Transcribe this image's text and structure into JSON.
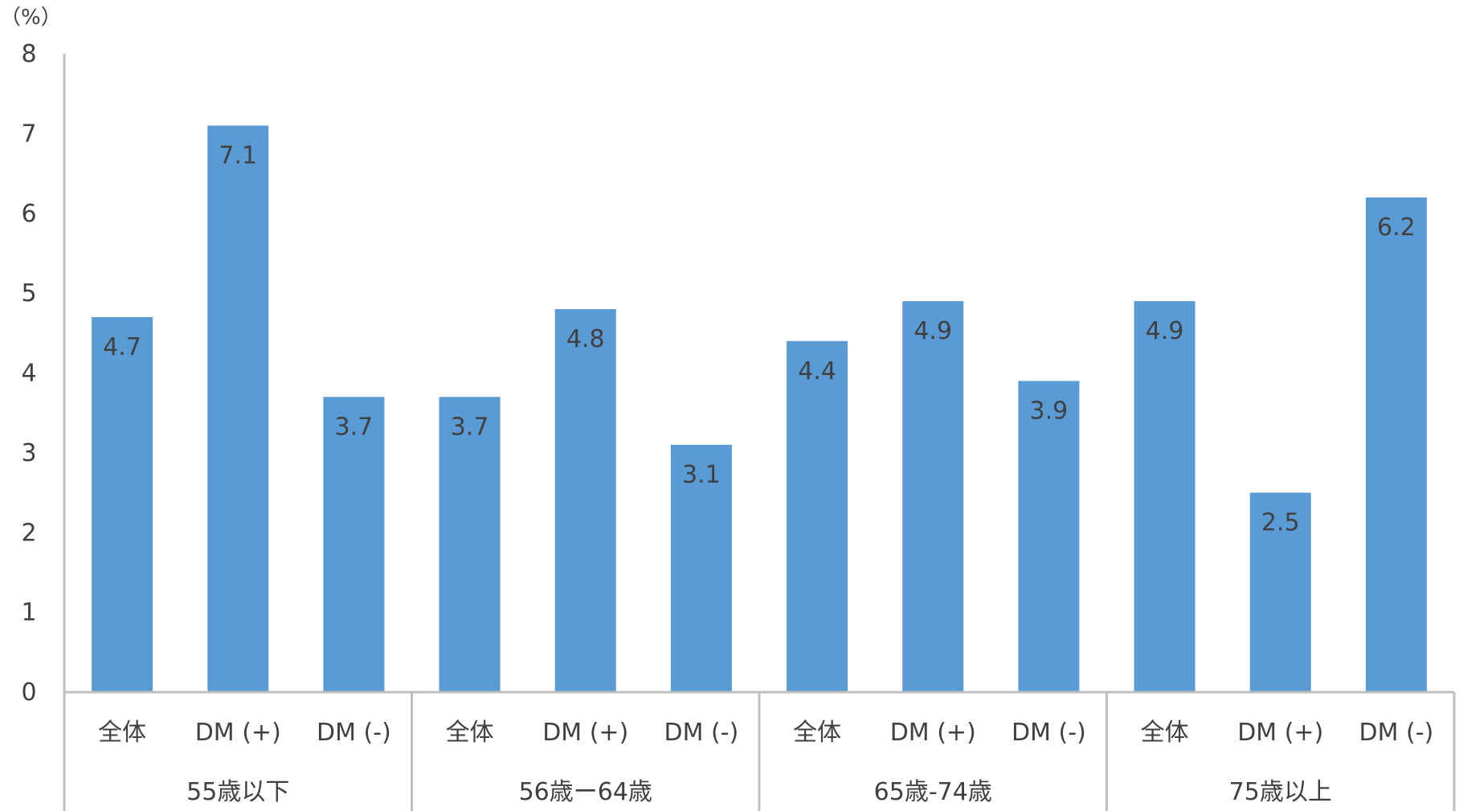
{
  "chart_data": {
    "type": "bar",
    "unit_label": "（%）",
    "ylim": [
      0,
      8
    ],
    "y_ticks": [
      "0",
      "1",
      "2",
      "3",
      "4",
      "5",
      "6",
      "7",
      "8"
    ],
    "groups": [
      {
        "label": "55歳以下",
        "categories": [
          "全体",
          "DM (+)",
          "DM (-)"
        ],
        "values": [
          4.7,
          7.1,
          3.7
        ],
        "value_labels": [
          "4.7",
          "7.1",
          "3.7"
        ]
      },
      {
        "label": "56歳ー64歳",
        "categories": [
          "全体",
          "DM (+)",
          "DM (-)"
        ],
        "values": [
          3.7,
          4.8,
          3.1
        ],
        "value_labels": [
          "3.7",
          "4.8",
          "3.1"
        ]
      },
      {
        "label": "65歳-74歳",
        "categories": [
          "全体",
          "DM (+)",
          "DM (-)"
        ],
        "values": [
          4.4,
          4.9,
          3.9
        ],
        "value_labels": [
          "4.4",
          "4.9",
          "3.9"
        ]
      },
      {
        "label": "75歳以上",
        "categories": [
          "全体",
          "DM (+)",
          "DM (-)"
        ],
        "values": [
          4.9,
          2.5,
          6.2
        ],
        "value_labels": [
          "4.9",
          "2.5",
          "6.2"
        ]
      }
    ],
    "bar_color": "#5b9bd5",
    "grid": false,
    "legend": "none"
  }
}
